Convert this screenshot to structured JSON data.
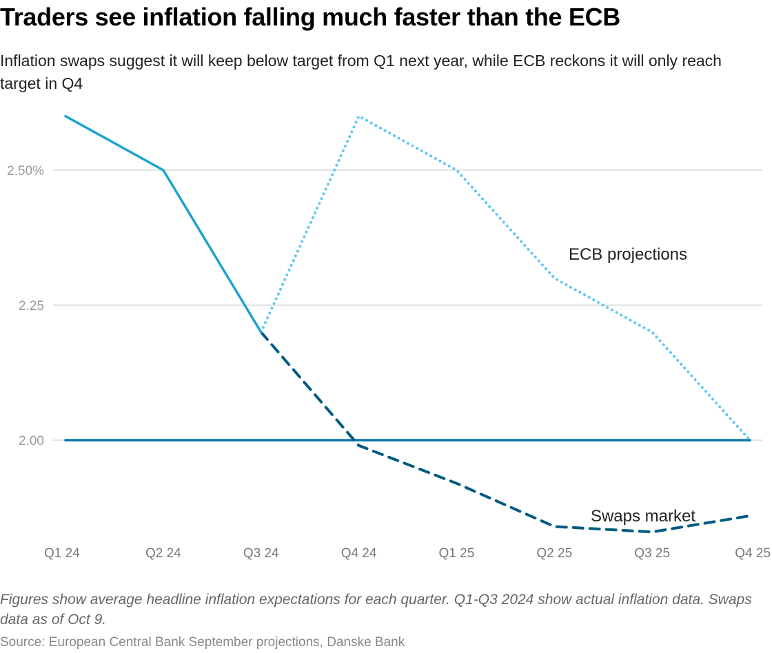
{
  "header": {
    "title": "Traders see inflation falling much faster than the ECB",
    "subtitle": "Inflation swaps suggest it will keep below target from Q1 next year, while ECB reckons it will only reach target in Q4"
  },
  "footer": {
    "note": "Figures show average headline inflation expectations for each quarter. Q1-Q3 2024 show actual inflation data. Swaps data as of Oct 9.",
    "source": "Source: European Central Bank September projections, Danske Bank"
  },
  "chart_data": {
    "type": "line",
    "title": "Traders see inflation falling much faster than the ECB",
    "subtitle": "Inflation swaps suggest it will keep below target from Q1 next year, while ECB reckons it will only reach target in Q4",
    "xlabel": "",
    "ylabel": "",
    "categories": [
      "Q1 24",
      "Q2 24",
      "Q3 24",
      "Q4 24",
      "Q1 25",
      "Q2 25",
      "Q3 25",
      "Q4 25"
    ],
    "ylim": [
      1.8,
      2.6
    ],
    "yticks": [
      {
        "value": 2.5,
        "label": "2.50%"
      },
      {
        "value": 2.25,
        "label": "2.25"
      },
      {
        "value": 2.0,
        "label": "2.00"
      }
    ],
    "grid": true,
    "legend": "none (direct labels)",
    "series": [
      {
        "name": "Actual inflation",
        "style": "solid",
        "color": "#1aa3cf",
        "values": [
          2.6,
          2.5,
          2.2,
          null,
          null,
          null,
          null,
          null
        ]
      },
      {
        "name": "ECB projections",
        "style": "dotted",
        "color": "#5bc8f5",
        "values": [
          null,
          null,
          2.2,
          2.6,
          2.5,
          2.3,
          2.2,
          2.0
        ],
        "label": "ECB projections"
      },
      {
        "name": "Swaps market",
        "style": "dashed",
        "color": "#005b82",
        "values": [
          null,
          null,
          2.2,
          1.99,
          1.92,
          1.84,
          1.83,
          1.86
        ],
        "label": "Swaps market"
      },
      {
        "name": "Target",
        "style": "solid",
        "color": "#0a77a6",
        "values": [
          2.0,
          2.0,
          2.0,
          2.0,
          2.0,
          2.0,
          2.0,
          2.0
        ]
      }
    ],
    "annotations": [
      {
        "text": "ECB projections",
        "series": "ECB projections"
      },
      {
        "text": "Swaps market",
        "series": "Swaps market"
      }
    ]
  }
}
